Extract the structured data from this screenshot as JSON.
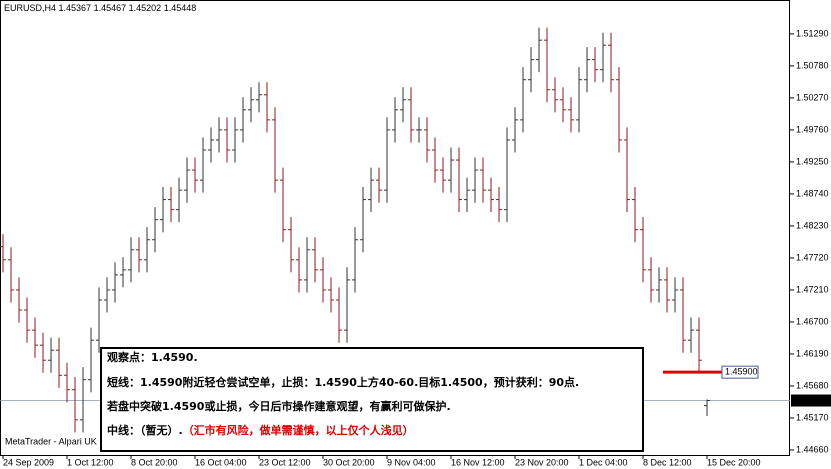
{
  "chart_data": {
    "type": "ohlc",
    "symbol": "EURUSD,H4",
    "watermark": "MetaTrader - Alpari UK",
    "up_color": "#333333",
    "down_color": "#8b1a1a",
    "categories": [
      "24 Sep 2009",
      null,
      null,
      null,
      null,
      null,
      null,
      null,
      "1 Oct 12:00",
      null,
      null,
      null,
      null,
      null,
      null,
      null,
      "8 Oct 20:00",
      null,
      null,
      null,
      null,
      null,
      null,
      null,
      "16 Oct 04:00",
      null,
      null,
      null,
      null,
      null,
      null,
      null,
      "23 Oct 12:00",
      null,
      null,
      null,
      null,
      null,
      null,
      null,
      "30 Oct 20:00",
      null,
      null,
      null,
      null,
      null,
      null,
      null,
      "9 Nov 04:00",
      null,
      null,
      null,
      null,
      null,
      null,
      null,
      "16 Nov 12:00",
      null,
      null,
      null,
      null,
      null,
      null,
      null,
      "23 Nov 20:00",
      null,
      null,
      null,
      null,
      null,
      null,
      null,
      "1 Dec 04:00",
      null,
      null,
      null,
      null,
      null,
      null,
      null,
      "8 Dec 12:00",
      null,
      null,
      null,
      null,
      null,
      null,
      null,
      "15 Dec 20:00"
    ],
    "open": [
      1.479,
      1.4769,
      1.4721,
      1.4689,
      1.4657,
      1.4633,
      1.4609,
      1.4625,
      1.4585,
      1.4562,
      1.4514,
      1.4578,
      1.4641,
      1.4705,
      1.4721,
      1.4745,
      1.4753,
      1.4785,
      1.4769,
      1.4801,
      1.4833,
      1.4865,
      1.4849,
      1.488,
      1.4912,
      1.4896,
      1.4944,
      1.496,
      1.4976,
      1.4944,
      1.4976,
      1.5008,
      1.5024,
      1.5032,
      1.4992,
      1.4896,
      1.4817,
      1.4769,
      1.4737,
      1.4785,
      1.4753,
      1.4721,
      1.4705,
      1.4657,
      1.4737,
      1.4801,
      1.4865,
      1.4896,
      1.488,
      1.4976,
      1.5008,
      1.5024,
      1.4976,
      1.4976,
      1.4944,
      1.4912,
      1.4896,
      1.4928,
      1.4865,
      1.488,
      1.4912,
      1.488,
      1.4865,
      1.4849,
      1.496,
      1.4992,
      1.5056,
      1.5088,
      1.5119,
      1.504,
      1.5024,
      1.5008,
      1.4992,
      1.5056,
      1.5088,
      1.5072,
      1.5111,
      1.5056,
      1.496,
      1.4865,
      1.4817,
      1.4753,
      1.4721,
      1.4737,
      1.4705,
      1.4721,
      1.4641,
      1.4657,
      1.45367
    ],
    "high": [
      1.481,
      1.4789,
      1.4741,
      1.4709,
      1.4677,
      1.4653,
      1.4645,
      1.4645,
      1.4605,
      1.4582,
      1.4598,
      1.4661,
      1.4725,
      1.4741,
      1.4765,
      1.4773,
      1.4805,
      1.4805,
      1.4821,
      1.4853,
      1.4885,
      1.4885,
      1.49,
      1.4932,
      1.4932,
      1.4964,
      1.498,
      1.4996,
      1.4996,
      1.4996,
      1.5028,
      1.5044,
      1.5052,
      1.5052,
      1.5012,
      1.4916,
      1.4837,
      1.4789,
      1.4805,
      1.4805,
      1.4773,
      1.4741,
      1.4725,
      1.4757,
      1.4821,
      1.4885,
      1.4916,
      1.4916,
      1.4996,
      1.5028,
      1.5044,
      1.5044,
      1.4996,
      1.4996,
      1.4964,
      1.4932,
      1.4948,
      1.4948,
      1.49,
      1.4932,
      1.4932,
      1.49,
      1.4885,
      1.498,
      1.5012,
      1.5076,
      1.5108,
      1.5139,
      1.5139,
      1.506,
      1.5044,
      1.5028,
      1.5076,
      1.5108,
      1.5108,
      1.5131,
      1.5131,
      1.5076,
      1.498,
      1.4885,
      1.4837,
      1.4773,
      1.4757,
      1.4757,
      1.4741,
      1.4741,
      1.4677,
      1.4677,
      1.45467
    ],
    "low": [
      1.4749,
      1.4701,
      1.4669,
      1.4637,
      1.4613,
      1.4589,
      1.4589,
      1.4565,
      1.4542,
      1.4494,
      1.4494,
      1.4558,
      1.4621,
      1.4685,
      1.4701,
      1.4725,
      1.4733,
      1.4749,
      1.4749,
      1.4781,
      1.4813,
      1.4829,
      1.4829,
      1.486,
      1.4876,
      1.4876,
      1.4924,
      1.494,
      1.4924,
      1.4924,
      1.4956,
      1.4988,
      1.5004,
      1.4972,
      1.4876,
      1.4797,
      1.4749,
      1.4717,
      1.4717,
      1.4733,
      1.4701,
      1.4685,
      1.4637,
      1.4637,
      1.4717,
      1.4781,
      1.4845,
      1.486,
      1.486,
      1.4956,
      1.4988,
      1.4956,
      1.4956,
      1.4924,
      1.4892,
      1.4876,
      1.4876,
      1.4845,
      1.4845,
      1.486,
      1.486,
      1.4845,
      1.4829,
      1.4829,
      1.494,
      1.4972,
      1.5036,
      1.5068,
      1.502,
      1.5004,
      1.4988,
      1.4972,
      1.4972,
      1.5036,
      1.5052,
      1.5052,
      1.5036,
      1.494,
      1.4845,
      1.4797,
      1.4733,
      1.4701,
      1.4701,
      1.4685,
      1.4685,
      1.4621,
      1.4621,
      1.4589,
      1.45202
    ],
    "close": [
      1.4769,
      1.4721,
      1.4689,
      1.4657,
      1.4633,
      1.4609,
      1.4625,
      1.4585,
      1.4562,
      1.4514,
      1.4578,
      1.4641,
      1.4705,
      1.4721,
      1.4745,
      1.4753,
      1.4785,
      1.4769,
      1.4801,
      1.4833,
      1.4865,
      1.4849,
      1.488,
      1.4912,
      1.4896,
      1.4944,
      1.496,
      1.4976,
      1.4944,
      1.4976,
      1.5008,
      1.5024,
      1.5032,
      1.4992,
      1.4896,
      1.4817,
      1.4769,
      1.4737,
      1.4785,
      1.4753,
      1.4721,
      1.4705,
      1.4657,
      1.4737,
      1.4801,
      1.4865,
      1.4896,
      1.488,
      1.4976,
      1.5008,
      1.5024,
      1.4976,
      1.4976,
      1.4944,
      1.4912,
      1.4896,
      1.4928,
      1.4865,
      1.488,
      1.4912,
      1.488,
      1.4865,
      1.4849,
      1.496,
      1.4992,
      1.5056,
      1.5088,
      1.5119,
      1.504,
      1.5024,
      1.5008,
      1.4992,
      1.5056,
      1.5088,
      1.5072,
      1.5111,
      1.5056,
      1.496,
      1.4865,
      1.4817,
      1.4753,
      1.4721,
      1.4737,
      1.4705,
      1.4721,
      1.4641,
      1.4657,
      1.4609,
      1.45448
    ],
    "ylim": [
      1.4458,
      1.5183
    ],
    "yticks": [
      {
        "value": 1.5129,
        "label": "1.51290"
      },
      {
        "value": 1.5078,
        "label": "1.50780"
      },
      {
        "value": 1.5027,
        "label": "1.50270"
      },
      {
        "value": 1.4976,
        "label": "1.49760"
      },
      {
        "value": 1.4925,
        "label": "1.49250"
      },
      {
        "value": 1.4874,
        "label": "1.48740"
      },
      {
        "value": 1.4823,
        "label": "1.48230"
      },
      {
        "value": 1.4772,
        "label": "1.47720"
      },
      {
        "value": 1.4721,
        "label": "1.47210"
      },
      {
        "value": 1.467,
        "label": "1.46700"
      },
      {
        "value": 1.4619,
        "label": "1.46190"
      },
      {
        "value": 1.4568,
        "label": "1.45680"
      },
      {
        "value": 1.4517,
        "label": "1.45170"
      },
      {
        "value": 1.4466,
        "label": "1.44660"
      }
    ],
    "level": {
      "value": 1.459,
      "label": "1.45900",
      "color": "#e00000"
    },
    "annotation_lines": [
      "观察点：1.4590.",
      "短线：1.4590附近轻仓尝试空单，止损：1.4590上方40-60.目标1.4500，预计获利：90点.",
      "若盘中突破1.4590或止损，今日后市操作建意观望，有赢利可做保护.",
      "中线：（暂无）."
    ],
    "annotation_warning": "（汇市有风险，做单需谨慎，以上仅个人浅见）",
    "annotation_warning_color": "#e00000"
  }
}
